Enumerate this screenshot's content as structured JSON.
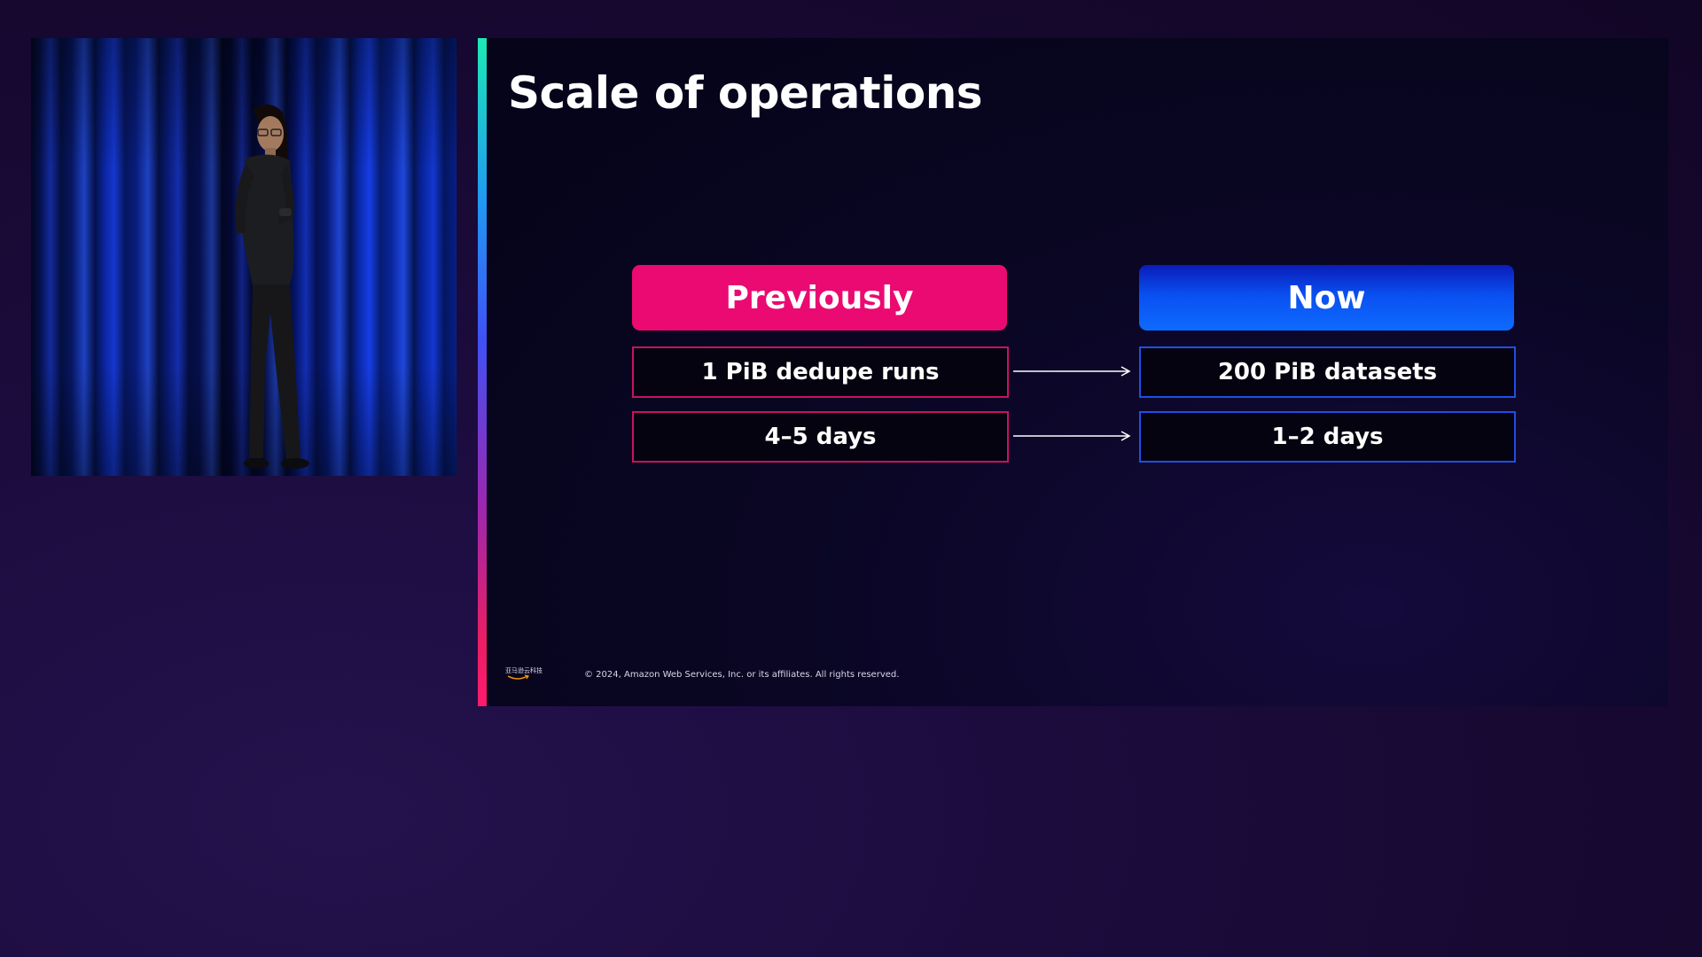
{
  "slide": {
    "title": "Scale of operations",
    "columns": {
      "previously": "Previously",
      "now": "Now"
    },
    "rows": [
      {
        "previously": "1 PiB dedupe runs",
        "now": "200 PiB datasets"
      },
      {
        "previously": "4–5 days",
        "now": "1–2 days"
      }
    ],
    "footer": {
      "logo_text": "亚马逊云科技",
      "copyright": "© 2024, Amazon Web Services, Inc. or its affiliates. All rights reserved."
    }
  },
  "colors": {
    "previously_accent": "#ea0a72",
    "now_accent": "#0a4ff0",
    "slide_background": "#050418",
    "page_background": "#1a0b3a"
  }
}
